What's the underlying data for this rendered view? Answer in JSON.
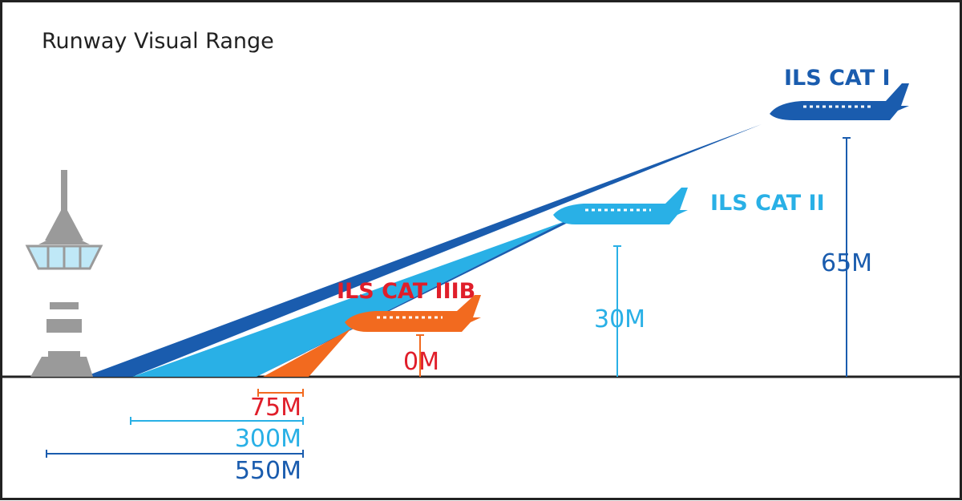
{
  "title": "Runway Visual Range",
  "colors": {
    "cat1": "#1a5cae",
    "cat2": "#29b0e6",
    "cat3b": "#f26a1f",
    "cat3b_label": "#e01e2a",
    "tower": "#9a9a9a",
    "tower_glass": "#bfe8f7",
    "frame": "#222222"
  },
  "categories": [
    {
      "label": "ILS CAT I",
      "decision_height": "65M",
      "rvr": "550M"
    },
    {
      "label": "ILS CAT II",
      "decision_height": "30M",
      "rvr": "300M"
    },
    {
      "label": "ILS CAT IIIB",
      "decision_height": "0M",
      "rvr": "75M"
    }
  ],
  "icons": [
    "control-tower-icon",
    "airplane-icon"
  ]
}
